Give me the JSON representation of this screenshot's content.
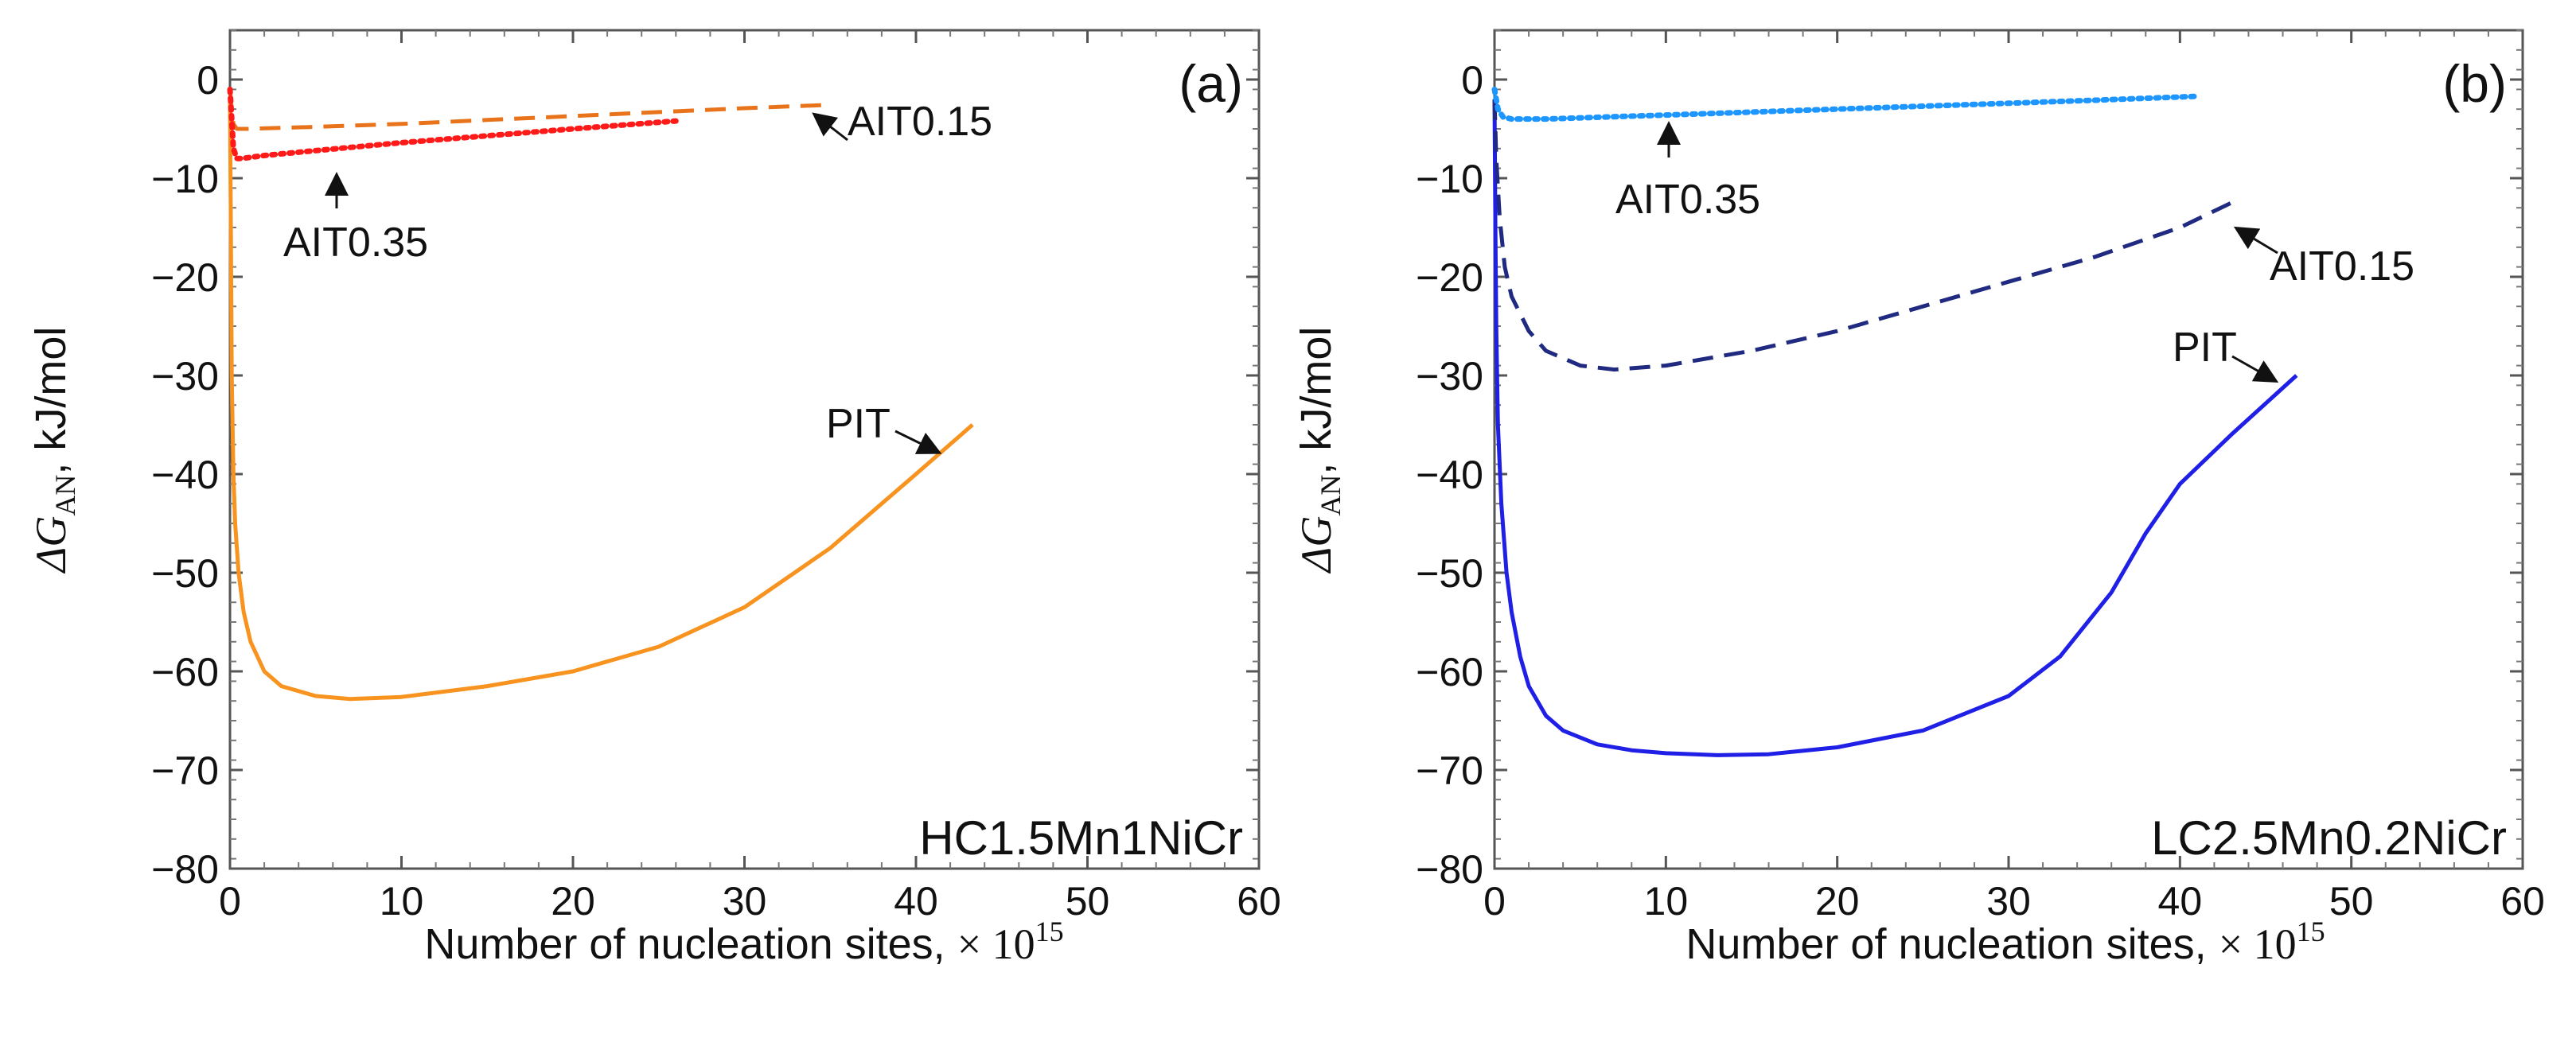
{
  "chart_data": [
    {
      "type": "line",
      "panel_label": "(a)",
      "sample_label": "HC1.5Mn1NiCr",
      "xlabel_text": "Number of nucleation sites, ",
      "xlabel_math": "× 10",
      "xlabel_exp": "15",
      "ylabel_text": ", kJ/mol",
      "ylabel_symbol": "ΔG",
      "ylabel_sub": "AN",
      "xlim": [
        0,
        60
      ],
      "ylim": [
        -80,
        5
      ],
      "xticks": [
        0,
        10,
        20,
        30,
        40,
        50,
        60
      ],
      "yticks": [
        0,
        -10,
        -20,
        -30,
        -40,
        -50,
        -60,
        -70,
        -80
      ],
      "xtick_labels": [
        "0",
        "10",
        "20",
        "30",
        "40",
        "50",
        "60"
      ],
      "ytick_labels": [
        "0",
        "−10",
        "−20",
        "−30",
        "−40",
        "−50",
        "−60",
        "−70",
        "−80"
      ],
      "series": [
        {
          "name": "PIT",
          "color": "#f7931e",
          "dash": "solid",
          "x": [
            0,
            0.05,
            0.1,
            0.2,
            0.3,
            0.5,
            0.8,
            1.2,
            2,
            3,
            5,
            7,
            10,
            15,
            20,
            25,
            30,
            35,
            40,
            43.3
          ],
          "y": [
            -2,
            -15,
            -30,
            -40,
            -45,
            -50,
            -54,
            -57,
            -60,
            -61.5,
            -62.5,
            -62.8,
            -62.6,
            -61.5,
            -60,
            -57.5,
            -53.5,
            -47.5,
            -40,
            -35
          ]
        },
        {
          "name": "AIT0.15",
          "color": "#e8731a",
          "dash": "dashed",
          "x": [
            0,
            0.1,
            0.2,
            0.4,
            1,
            5,
            10,
            15,
            20,
            25,
            30,
            34.5
          ],
          "y": [
            -1,
            -3,
            -4.5,
            -5,
            -5,
            -4.8,
            -4.5,
            -4.1,
            -3.7,
            -3.3,
            -2.9,
            -2.6
          ]
        },
        {
          "name": "AIT0.35",
          "color": "#ff1a1a",
          "dash": "dotted",
          "x": [
            0,
            0.1,
            0.2,
            0.4,
            0.7,
            2,
            5,
            10,
            15,
            20,
            26
          ],
          "y": [
            -1,
            -4,
            -7,
            -8,
            -8,
            -7.7,
            -7.2,
            -6.4,
            -5.7,
            -5,
            -4.2
          ]
        }
      ],
      "annotations": [
        {
          "text": "AIT0.15",
          "series": "AIT0.15"
        },
        {
          "text": "AIT0.35",
          "series": "AIT0.35"
        },
        {
          "text": "PIT",
          "series": "PIT"
        }
      ]
    },
    {
      "type": "line",
      "panel_label": "(b)",
      "sample_label": "LC2.5Mn0.2NiCr",
      "xlabel_text": "Number of nucleation sites, ",
      "xlabel_math": "× 10",
      "xlabel_exp": "15",
      "ylabel_text": ", kJ/mol",
      "ylabel_symbol": "ΔG",
      "ylabel_sub": "AN",
      "xlim": [
        0,
        60
      ],
      "ylim": [
        -80,
        5
      ],
      "xticks": [
        0,
        10,
        20,
        30,
        40,
        50,
        60
      ],
      "yticks": [
        0,
        -10,
        -20,
        -30,
        -40,
        -50,
        -60,
        -70,
        -80
      ],
      "xtick_labels": [
        "0",
        "10",
        "20",
        "30",
        "40",
        "50",
        "60"
      ],
      "ytick_labels": [
        "0",
        "−10",
        "−20",
        "−30",
        "−40",
        "−50",
        "−60",
        "−70",
        "−80"
      ],
      "series": [
        {
          "name": "PIT",
          "color": "#1f1fe6",
          "dash": "solid",
          "x": [
            0,
            0.05,
            0.1,
            0.2,
            0.4,
            0.7,
            1,
            1.5,
            2,
            3,
            4,
            6,
            8,
            10,
            13,
            16,
            20,
            25,
            30,
            33,
            36,
            38,
            40,
            43,
            46.8
          ],
          "y": [
            -2,
            -15,
            -25,
            -35,
            -43,
            -50,
            -54,
            -58.5,
            -61.5,
            -64.5,
            -66,
            -67.4,
            -68,
            -68.3,
            -68.5,
            -68.4,
            -67.7,
            -66,
            -62.5,
            -58.5,
            -52,
            -46,
            -41,
            -36,
            -30
          ]
        },
        {
          "name": "AIT0.15",
          "color": "#1f2a80",
          "dash": "dashed",
          "x": [
            0,
            0.1,
            0.3,
            0.6,
            1,
            2,
            3,
            5,
            7,
            10,
            15,
            20,
            25,
            30,
            35,
            40,
            43
          ],
          "y": [
            -2,
            -8,
            -14,
            -19,
            -22,
            -25.5,
            -27.5,
            -29,
            -29.4,
            -29,
            -27.5,
            -25.5,
            -23,
            -20.5,
            -18,
            -15,
            -12.5
          ]
        },
        {
          "name": "AIT0.35",
          "color": "#1e96ff",
          "dash": "dotted",
          "x": [
            0,
            0.2,
            0.5,
            1,
            3,
            10,
            15,
            20,
            25,
            30,
            35,
            41
          ],
          "y": [
            -1,
            -3,
            -3.8,
            -4,
            -4,
            -3.6,
            -3.3,
            -3,
            -2.7,
            -2.4,
            -2.1,
            -1.7
          ]
        }
      ],
      "annotations": [
        {
          "text": "AIT0.35",
          "series": "AIT0.35"
        },
        {
          "text": "AIT0.15",
          "series": "AIT0.15"
        },
        {
          "text": "PIT",
          "series": "PIT"
        }
      ]
    }
  ]
}
